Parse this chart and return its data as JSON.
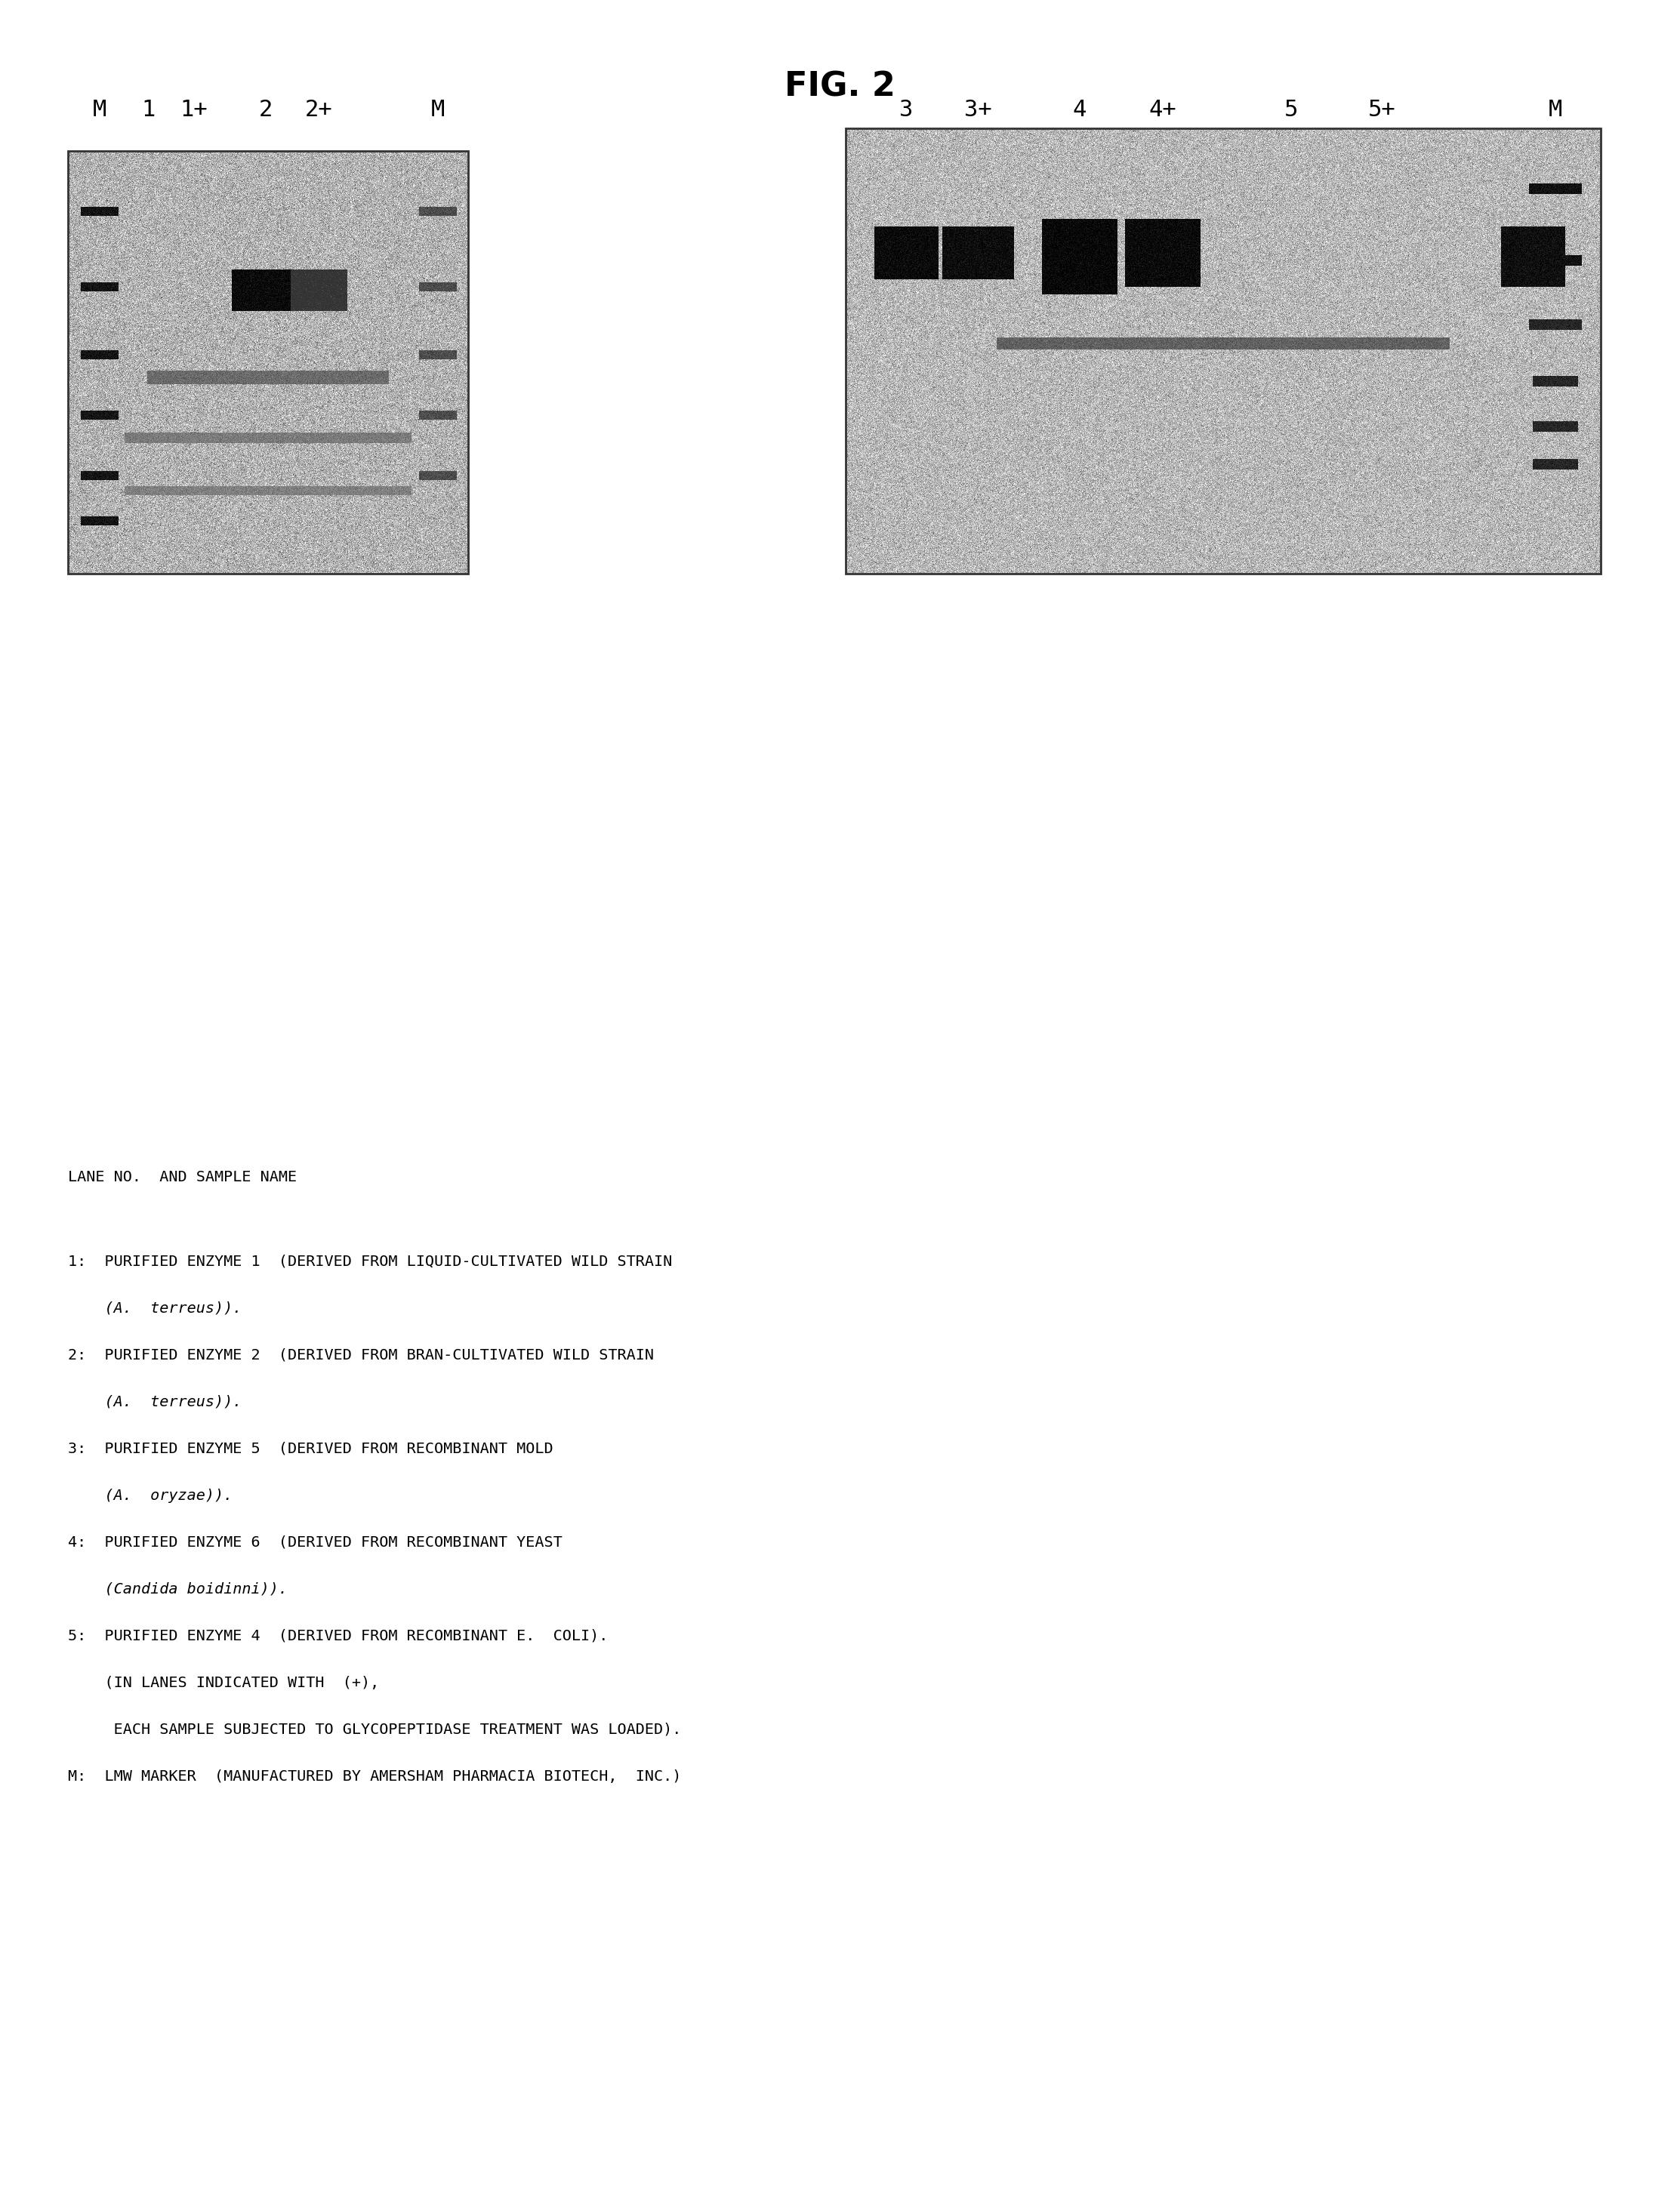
{
  "title": "FIG. 2",
  "title_fontsize": 32,
  "title_fontstyle": "normal",
  "bg_color": "#ffffff",
  "left_gel_labels": [
    "M",
    "1",
    "1+",
    "2",
    "2+",
    "M"
  ],
  "right_gel_labels": [
    "3",
    "3+",
    "4",
    "4+",
    "5",
    "5+",
    "M"
  ],
  "legend_header": "LANE NO.  AND SAMPLE NAME",
  "legend_lines": [
    "1:  PURIFIED ENZYME 1  (DERIVED FROM LIQUID-CULTIVATED WILD STRAIN",
    "    (A.  terreus)).",
    "2:  PURIFIED ENZYME 2  (DERIVED FROM BRAN-CULTIVATED WILD STRAIN",
    "    (A.  terreus)).",
    "3:  PURIFIED ENZYME 5  (DERIVED FROM RECOMBINANT MOLD",
    "    (A.  oryzae)).",
    "4:  PURIFIED ENZYME 6  (DERIVED FROM RECOMBINANT YEAST",
    "    (Candida boidinni)).",
    "5:  PURIFIED ENZYME 4  (DERIVED FROM RECOMBINANT E.  COLI).",
    "    (IN LANES INDICATED WITH  (+),",
    "     EACH SAMPLE SUBJECTED TO GLYCOPEPTIDASE TREATMENT WAS LOADED).",
    "M:  LMW MARKER  (MANUFACTURED BY AMERSHAM PHARMACIA BIOTECH,  INC.)"
  ],
  "legend_italic_lines": [
    false,
    true,
    false,
    true,
    false,
    true,
    false,
    true,
    false,
    false,
    false,
    false
  ],
  "text_fontsize": 14.5,
  "mono_font": "DejaVu Sans Mono"
}
